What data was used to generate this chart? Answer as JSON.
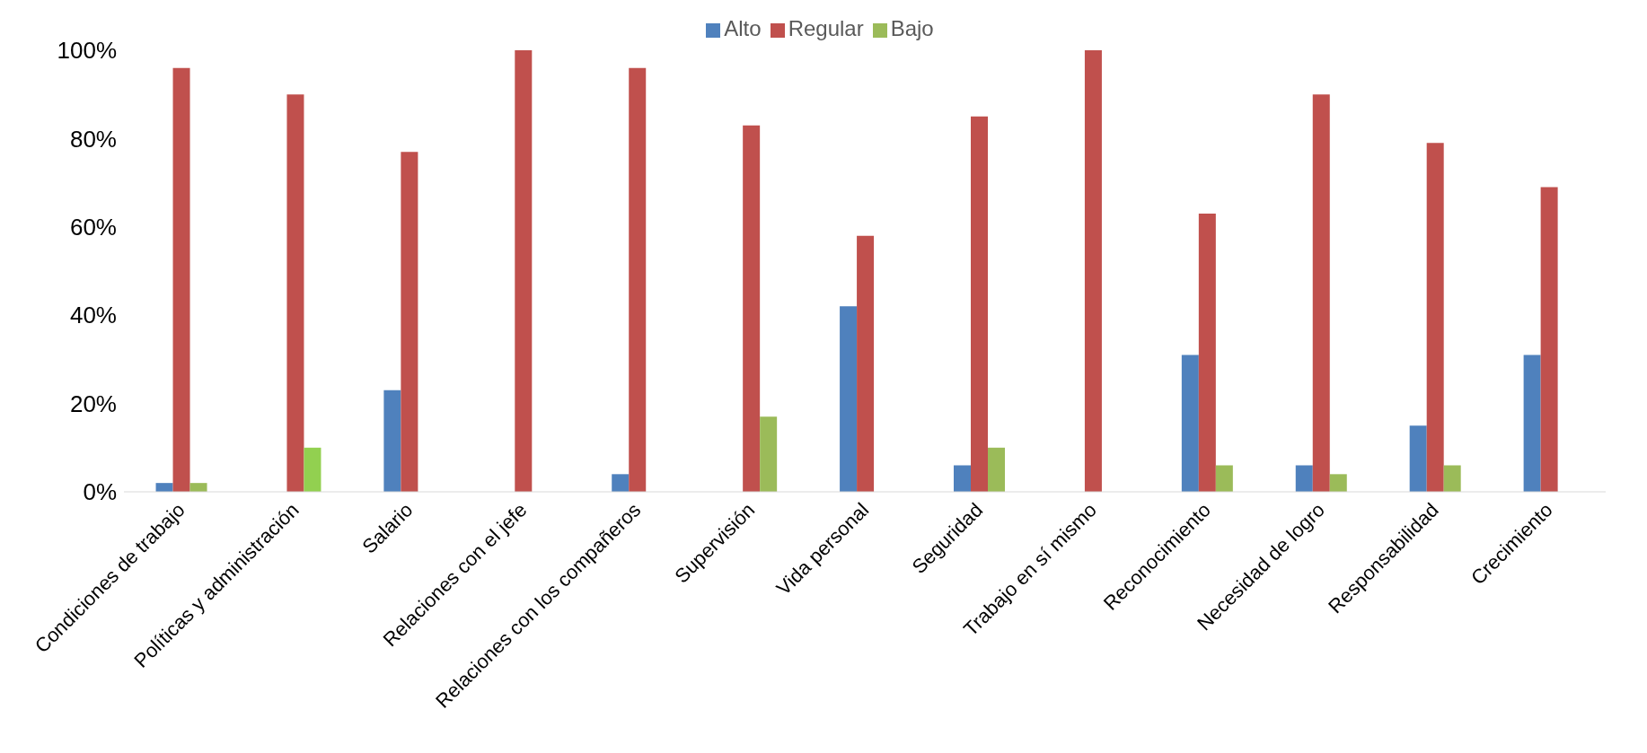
{
  "chart_data": {
    "type": "bar",
    "categories": [
      "Condiciones de trabajo",
      "Políticas y administración",
      "Salario",
      "Relaciones con el jefe",
      "Relaciones con los compañeros",
      "Supervisión",
      "Vida personal",
      "Seguridad",
      "Trabajo en sí mismo",
      "Reconocimiento",
      "Necesidad de logro",
      "Responsabilidad",
      "Crecimiento"
    ],
    "series": [
      {
        "name": "Alto",
        "color": "#4f81bd",
        "values": [
          2,
          0,
          23,
          0,
          4,
          0,
          42,
          6,
          0,
          31,
          6,
          15,
          31
        ]
      },
      {
        "name": "Regular",
        "color": "#c0504d",
        "values": [
          96,
          90,
          77,
          100,
          96,
          83,
          58,
          85,
          100,
          63,
          90,
          79,
          69
        ]
      },
      {
        "name": "Bajo",
        "color": "#9bbb59",
        "colors": [
          "#9bbb59",
          "#92d050",
          "#9bbb59",
          "#9bbb59",
          "#9bbb59",
          "#9bbb59",
          "#9bbb59",
          "#9bbb59",
          "#9bbb59",
          "#9bbb59",
          "#9bbb59",
          "#9bbb59",
          "#9bbb59"
        ],
        "values": [
          2,
          10,
          0,
          0,
          0,
          17,
          0,
          10,
          0,
          6,
          4,
          6,
          0
        ]
      }
    ],
    "ylim": [
      0,
      100
    ],
    "yticks": [
      {
        "value": 0,
        "label": "0%"
      },
      {
        "value": 20,
        "label": "20%"
      },
      {
        "value": 40,
        "label": "40%"
      },
      {
        "value": 60,
        "label": "60%"
      },
      {
        "value": 80,
        "label": "80%"
      },
      {
        "value": 100,
        "label": "100%"
      }
    ],
    "grid": false,
    "legend": "top"
  }
}
